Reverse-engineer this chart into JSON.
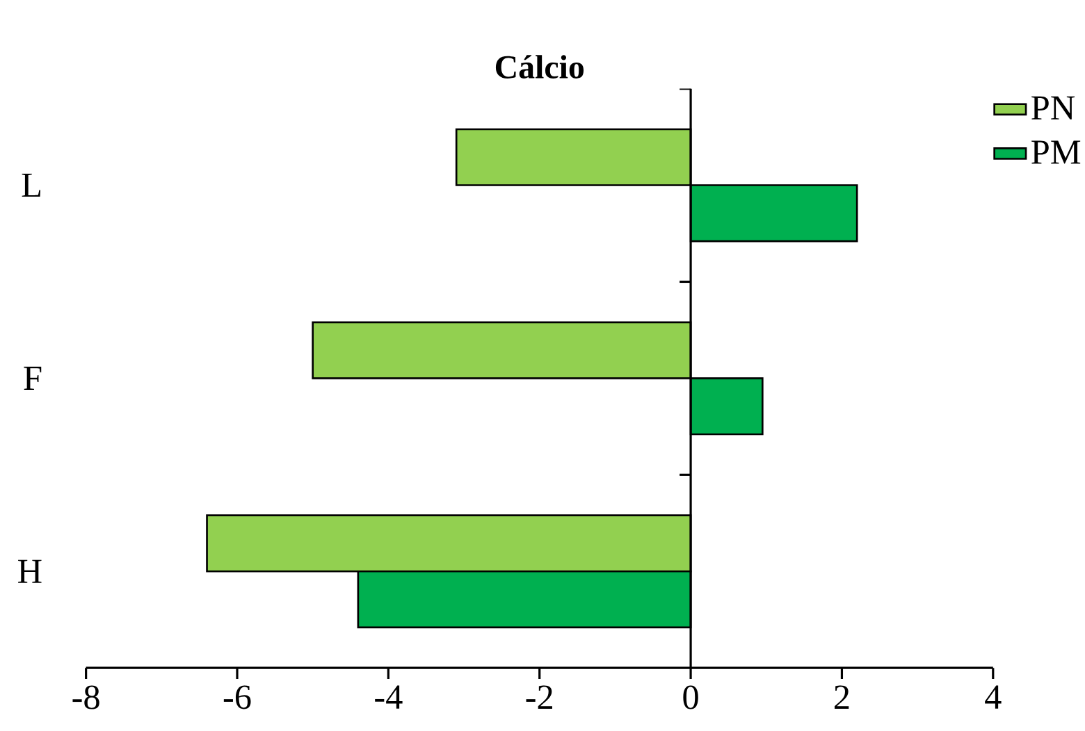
{
  "chart_data": {
    "type": "bar",
    "title": "Cálcio",
    "orientation": "horizontal",
    "categories": [
      "L",
      "F",
      "H"
    ],
    "series": [
      {
        "name": "PN",
        "color": "#92d050",
        "values": [
          -3.1,
          -5.0,
          -6.4
        ]
      },
      {
        "name": "PM",
        "color": "#00b050",
        "values": [
          2.2,
          0.95,
          -4.4
        ]
      }
    ],
    "xlim": [
      -8,
      4
    ],
    "xticks": [
      -8,
      -6,
      -4,
      -2,
      0,
      2,
      4
    ],
    "legend": "top right"
  }
}
